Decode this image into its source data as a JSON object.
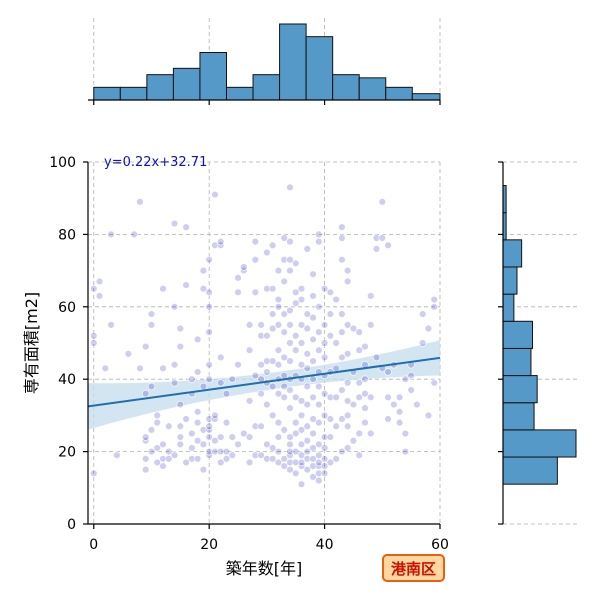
{
  "chart_data": {
    "type": "scatter",
    "xlabel": "築年数[年]",
    "ylabel": "専有面積[m2]",
    "xlim": [
      -1,
      60
    ],
    "ylim": [
      0,
      100
    ],
    "xticks": [
      0,
      20,
      40,
      60
    ],
    "yticks": [
      0,
      20,
      40,
      60,
      80,
      100
    ],
    "grid": true,
    "point_color": "#2222bb",
    "hist_color": "#5599c8",
    "line_color": "#1f6fb0",
    "band_color": "#c6dcee",
    "badge_fill": "#ffd7a0",
    "badge_border": "#e86010",
    "regression": {
      "slope": 0.22,
      "intercept": 32.71,
      "label": "y=0.22x+32.71"
    },
    "badge": "港南区",
    "x_hist": {
      "bin_edges": [
        0,
        4.6,
        9.2,
        13.8,
        18.4,
        23,
        27.6,
        32.2,
        36.8,
        41.4,
        46,
        50.6,
        55.2,
        60
      ],
      "counts": [
        4,
        4,
        8,
        10,
        15,
        4,
        8,
        24,
        20,
        8,
        7,
        4,
        2
      ]
    },
    "y_hist": {
      "bin_edges": [
        11,
        18.5,
        26,
        33.5,
        41,
        48.5,
        56,
        63.5,
        71,
        78.5,
        86,
        93.5
      ],
      "counts": [
        35,
        47,
        20,
        22,
        18,
        19,
        7,
        9,
        12,
        2,
        2
      ]
    },
    "points": [
      [
        0,
        14
      ],
      [
        0,
        50
      ],
      [
        0,
        52
      ],
      [
        0,
        65
      ],
      [
        1,
        67
      ],
      [
        1,
        63
      ],
      [
        2,
        43
      ],
      [
        3,
        80
      ],
      [
        3,
        55
      ],
      [
        4,
        19
      ],
      [
        6,
        47
      ],
      [
        7,
        80
      ],
      [
        8,
        89
      ],
      [
        8,
        43
      ],
      [
        9,
        15
      ],
      [
        9,
        18
      ],
      [
        9,
        23
      ],
      [
        9,
        24
      ],
      [
        9,
        36
      ],
      [
        9,
        49
      ],
      [
        10,
        20
      ],
      [
        10,
        26
      ],
      [
        10,
        38
      ],
      [
        10,
        55
      ],
      [
        10,
        58
      ],
      [
        11,
        17
      ],
      [
        11,
        21
      ],
      [
        11,
        28
      ],
      [
        11,
        30
      ],
      [
        12,
        16
      ],
      [
        12,
        18
      ],
      [
        12,
        22
      ],
      [
        12,
        43
      ],
      [
        12,
        65
      ],
      [
        13,
        18
      ],
      [
        13,
        20
      ],
      [
        13,
        27
      ],
      [
        14,
        19
      ],
      [
        14,
        39
      ],
      [
        14,
        44
      ],
      [
        14,
        60
      ],
      [
        14,
        83
      ],
      [
        15,
        22
      ],
      [
        15,
        24
      ],
      [
        15,
        27
      ],
      [
        15,
        33
      ],
      [
        15,
        49
      ],
      [
        15,
        54
      ],
      [
        16,
        17
      ],
      [
        16,
        29
      ],
      [
        16,
        66
      ],
      [
        16,
        82
      ],
      [
        17,
        18
      ],
      [
        17,
        21
      ],
      [
        17,
        25
      ],
      [
        17,
        36
      ],
      [
        17,
        40
      ],
      [
        18,
        18
      ],
      [
        18,
        23
      ],
      [
        18,
        28
      ],
      [
        18,
        31
      ],
      [
        18,
        42
      ],
      [
        18,
        51
      ],
      [
        19,
        15
      ],
      [
        19,
        22
      ],
      [
        19,
        26
      ],
      [
        19,
        38
      ],
      [
        19,
        65
      ],
      [
        19,
        70
      ],
      [
        20,
        19
      ],
      [
        20,
        20
      ],
      [
        20,
        24
      ],
      [
        20,
        26
      ],
      [
        20,
        27
      ],
      [
        20,
        29
      ],
      [
        20,
        40
      ],
      [
        20,
        44
      ],
      [
        20,
        53
      ],
      [
        20,
        60
      ],
      [
        20,
        64
      ],
      [
        20,
        73
      ],
      [
        21,
        20
      ],
      [
        21,
        23
      ],
      [
        21,
        29
      ],
      [
        21,
        30
      ],
      [
        21,
        77
      ],
      [
        21,
        91
      ],
      [
        22,
        17
      ],
      [
        22,
        20
      ],
      [
        22,
        24
      ],
      [
        22,
        39
      ],
      [
        22,
        46
      ],
      [
        22,
        77
      ],
      [
        22,
        78
      ],
      [
        23,
        18
      ],
      [
        23,
        20
      ],
      [
        23,
        28
      ],
      [
        23,
        36
      ],
      [
        24,
        19
      ],
      [
        24,
        24
      ],
      [
        24,
        40
      ],
      [
        25,
        22
      ],
      [
        25,
        44
      ],
      [
        25,
        64
      ],
      [
        25,
        68
      ],
      [
        26,
        25
      ],
      [
        26,
        70
      ],
      [
        26,
        71
      ],
      [
        27,
        17
      ],
      [
        27,
        24
      ],
      [
        27,
        34
      ],
      [
        27,
        48
      ],
      [
        27,
        55
      ],
      [
        28,
        19
      ],
      [
        28,
        27
      ],
      [
        28,
        41
      ],
      [
        28,
        64
      ],
      [
        28,
        73
      ],
      [
        28,
        78
      ],
      [
        29,
        19
      ],
      [
        29,
        27
      ],
      [
        29,
        36
      ],
      [
        29,
        40
      ],
      [
        29,
        44
      ],
      [
        29,
        52
      ],
      [
        29,
        55
      ],
      [
        30,
        18
      ],
      [
        30,
        22
      ],
      [
        30,
        33
      ],
      [
        30,
        39
      ],
      [
        30,
        42
      ],
      [
        30,
        45
      ],
      [
        30,
        52
      ],
      [
        30,
        65
      ],
      [
        30,
        75
      ],
      [
        31,
        18
      ],
      [
        31,
        21
      ],
      [
        31,
        30
      ],
      [
        31,
        38
      ],
      [
        31,
        45
      ],
      [
        31,
        54
      ],
      [
        31,
        58
      ],
      [
        31,
        65
      ],
      [
        31,
        77
      ],
      [
        32,
        17
      ],
      [
        32,
        20
      ],
      [
        32,
        24
      ],
      [
        32,
        28
      ],
      [
        32,
        36
      ],
      [
        32,
        40
      ],
      [
        32,
        44
      ],
      [
        32,
        48
      ],
      [
        32,
        55
      ],
      [
        32,
        60
      ],
      [
        32,
        62
      ],
      [
        32,
        70
      ],
      [
        33,
        16
      ],
      [
        33,
        18
      ],
      [
        33,
        26
      ],
      [
        33,
        35
      ],
      [
        33,
        38
      ],
      [
        33,
        41
      ],
      [
        33,
        46
      ],
      [
        33,
        53
      ],
      [
        33,
        58
      ],
      [
        33,
        67
      ],
      [
        33,
        73
      ],
      [
        33,
        79
      ],
      [
        34,
        15
      ],
      [
        34,
        17
      ],
      [
        34,
        19
      ],
      [
        34,
        20
      ],
      [
        34,
        22
      ],
      [
        34,
        24
      ],
      [
        34,
        32
      ],
      [
        34,
        37
      ],
      [
        34,
        40
      ],
      [
        34,
        45
      ],
      [
        34,
        50
      ],
      [
        34,
        55
      ],
      [
        34,
        59
      ],
      [
        34,
        70
      ],
      [
        34,
        73
      ],
      [
        34,
        78
      ],
      [
        34,
        93
      ],
      [
        35,
        14
      ],
      [
        35,
        17
      ],
      [
        35,
        20
      ],
      [
        35,
        25
      ],
      [
        35,
        28
      ],
      [
        35,
        35
      ],
      [
        35,
        41
      ],
      [
        35,
        48
      ],
      [
        35,
        52
      ],
      [
        35,
        61
      ],
      [
        35,
        64
      ],
      [
        35,
        72
      ],
      [
        36,
        11
      ],
      [
        36,
        16
      ],
      [
        36,
        17
      ],
      [
        36,
        19
      ],
      [
        36,
        22
      ],
      [
        36,
        26
      ],
      [
        36,
        30
      ],
      [
        36,
        34
      ],
      [
        36,
        40
      ],
      [
        36,
        44
      ],
      [
        36,
        50
      ],
      [
        36,
        55
      ],
      [
        36,
        62
      ],
      [
        36,
        65
      ],
      [
        37,
        15
      ],
      [
        37,
        18
      ],
      [
        37,
        20
      ],
      [
        37,
        23
      ],
      [
        37,
        27
      ],
      [
        37,
        33
      ],
      [
        37,
        38
      ],
      [
        37,
        43
      ],
      [
        37,
        47
      ],
      [
        37,
        54
      ],
      [
        37,
        58
      ],
      [
        37,
        76
      ],
      [
        38,
        13
      ],
      [
        38,
        16
      ],
      [
        38,
        18
      ],
      [
        38,
        21
      ],
      [
        38,
        25
      ],
      [
        38,
        29
      ],
      [
        38,
        35
      ],
      [
        38,
        40
      ],
      [
        38,
        45
      ],
      [
        38,
        51
      ],
      [
        38,
        57
      ],
      [
        38,
        63
      ],
      [
        38,
        69
      ],
      [
        39,
        12
      ],
      [
        39,
        14
      ],
      [
        39,
        16
      ],
      [
        39,
        17
      ],
      [
        39,
        19
      ],
      [
        39,
        22
      ],
      [
        39,
        28
      ],
      [
        39,
        33
      ],
      [
        39,
        38
      ],
      [
        39,
        42
      ],
      [
        39,
        48
      ],
      [
        39,
        53
      ],
      [
        39,
        60
      ],
      [
        39,
        78
      ],
      [
        39,
        80
      ],
      [
        40,
        14
      ],
      [
        40,
        16
      ],
      [
        40,
        18
      ],
      [
        40,
        21
      ],
      [
        40,
        24
      ],
      [
        40,
        30
      ],
      [
        40,
        36
      ],
      [
        40,
        41
      ],
      [
        40,
        46
      ],
      [
        40,
        50
      ],
      [
        40,
        55
      ],
      [
        40,
        65
      ],
      [
        41,
        17
      ],
      [
        41,
        24
      ],
      [
        41,
        29
      ],
      [
        41,
        35
      ],
      [
        41,
        42
      ],
      [
        41,
        52
      ],
      [
        41,
        58
      ],
      [
        41,
        64
      ],
      [
        42,
        18
      ],
      [
        42,
        27
      ],
      [
        42,
        35
      ],
      [
        42,
        43
      ],
      [
        42,
        50
      ],
      [
        42,
        62
      ],
      [
        43,
        20
      ],
      [
        43,
        29
      ],
      [
        43,
        37
      ],
      [
        43,
        46
      ],
      [
        43,
        53
      ],
      [
        43,
        58
      ],
      [
        43,
        73
      ],
      [
        43,
        79
      ],
      [
        43,
        82
      ],
      [
        44,
        21
      ],
      [
        44,
        27
      ],
      [
        44,
        30
      ],
      [
        44,
        34
      ],
      [
        44,
        39
      ],
      [
        44,
        47
      ],
      [
        44,
        55
      ],
      [
        44,
        67
      ],
      [
        44,
        70
      ],
      [
        45,
        23
      ],
      [
        45,
        33
      ],
      [
        45,
        42
      ],
      [
        45,
        54
      ],
      [
        46,
        19
      ],
      [
        46,
        25
      ],
      [
        46,
        35
      ],
      [
        46,
        39
      ],
      [
        46,
        48
      ],
      [
        46,
        53
      ],
      [
        47,
        28
      ],
      [
        47,
        32
      ],
      [
        47,
        36
      ],
      [
        47,
        40
      ],
      [
        47,
        44
      ],
      [
        47,
        49
      ],
      [
        48,
        25
      ],
      [
        48,
        35
      ],
      [
        48,
        55
      ],
      [
        48,
        63
      ],
      [
        49,
        46
      ],
      [
        49,
        76
      ],
      [
        49,
        79
      ],
      [
        50,
        43
      ],
      [
        50,
        79
      ],
      [
        50,
        89
      ],
      [
        51,
        29
      ],
      [
        51,
        35
      ],
      [
        51,
        42
      ],
      [
        51,
        77
      ],
      [
        52,
        33
      ],
      [
        52,
        44
      ],
      [
        53,
        28
      ],
      [
        53,
        31
      ],
      [
        53,
        35
      ],
      [
        54,
        20
      ],
      [
        54,
        25
      ],
      [
        54,
        40
      ],
      [
        55,
        37
      ],
      [
        55,
        41
      ],
      [
        55,
        44
      ],
      [
        56,
        33
      ],
      [
        57,
        50
      ],
      [
        57,
        58
      ],
      [
        58,
        30
      ],
      [
        58,
        54
      ],
      [
        59,
        39
      ],
      [
        59,
        60
      ],
      [
        59,
        62
      ]
    ]
  }
}
